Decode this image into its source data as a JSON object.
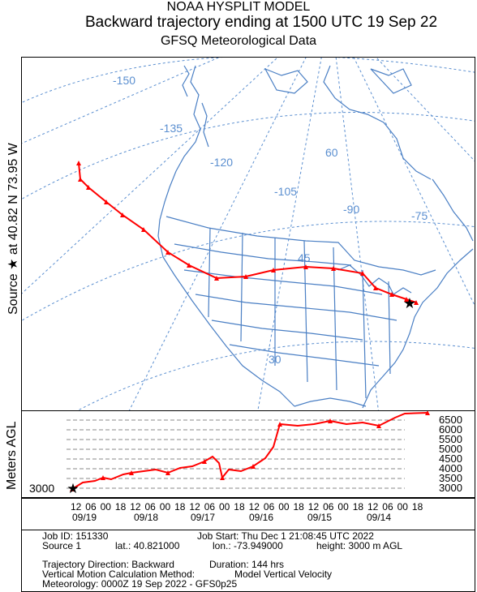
{
  "header": {
    "line1": "NOAA HYSPLIT MODEL",
    "line2": "Backward trajectory ending at 1500 UTC 19 Sep 22",
    "line3": "GFSQ Meteorological Data"
  },
  "side_label": "Source ★ at 40.82 N 73.95 W",
  "map": {
    "longitude_labels": [
      "-150",
      "-135",
      "-120",
      "-105",
      "-90",
      "-75"
    ],
    "latitude_labels": [
      "60",
      "45",
      "30"
    ],
    "colors": {
      "trajectory": "#ff0000",
      "grid": "#5b8fd0",
      "coast": "#4a7fc4",
      "source": "#000000"
    }
  },
  "profile": {
    "ylabel": "Meters AGL",
    "height_ticks": [
      "6500",
      "6000",
      "5500",
      "5000",
      "4500",
      "4000",
      "3500",
      "3000"
    ],
    "source_height": "3000",
    "time_ticks": [
      "12",
      "06",
      "00",
      "18",
      "12",
      "06",
      "00",
      "18",
      "12",
      "06",
      "00",
      "18",
      "12",
      "06",
      "00",
      "18",
      "12",
      "06",
      "00",
      "18",
      "12",
      "06",
      "00",
      "18"
    ],
    "date_labels": [
      "09/19",
      "09/18",
      "09/17",
      "09/16",
      "09/15",
      "09/14"
    ]
  },
  "info": {
    "job_id": "Job ID: 151330",
    "job_start": "Job Start: Thu Dec  1 21:08:45 UTC 2022",
    "source": "Source 1",
    "lat": "lat.: 40.821000",
    "lon": "lon.: -73.949000",
    "height": "height: 3000 m AGL",
    "direction": "Trajectory Direction: Backward",
    "duration": "Duration: 144 hrs",
    "vertical": "Vertical Motion Calculation Method:",
    "vertical_value": "Model Vertical Velocity",
    "meteorology": "Meteorology: 0000Z 19 Sep 2022 - GFS0p25"
  }
}
